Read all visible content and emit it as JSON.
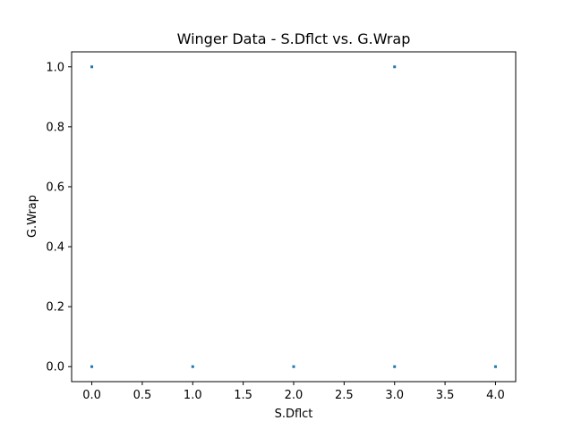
{
  "chart_data": {
    "type": "scatter",
    "title": "Winger Data - S.Dflct vs. G.Wrap",
    "xlabel": "S.Dflct",
    "ylabel": "G.Wrap",
    "xlim": [
      -0.2,
      4.2
    ],
    "ylim": [
      -0.05,
      1.05
    ],
    "xticks": [
      "0.0",
      "0.5",
      "1.0",
      "1.5",
      "2.0",
      "2.5",
      "3.0",
      "3.5",
      "4.0"
    ],
    "yticks": [
      "0.0",
      "0.2",
      "0.4",
      "0.6",
      "0.8",
      "1.0"
    ],
    "grid": false,
    "marker_color": "#1f77b4",
    "points": [
      {
        "x": 0,
        "y": 1
      },
      {
        "x": 3,
        "y": 1
      },
      {
        "x": 0,
        "y": 0
      },
      {
        "x": 1,
        "y": 0
      },
      {
        "x": 2,
        "y": 0
      },
      {
        "x": 3,
        "y": 0
      },
      {
        "x": 4,
        "y": 0
      }
    ]
  }
}
